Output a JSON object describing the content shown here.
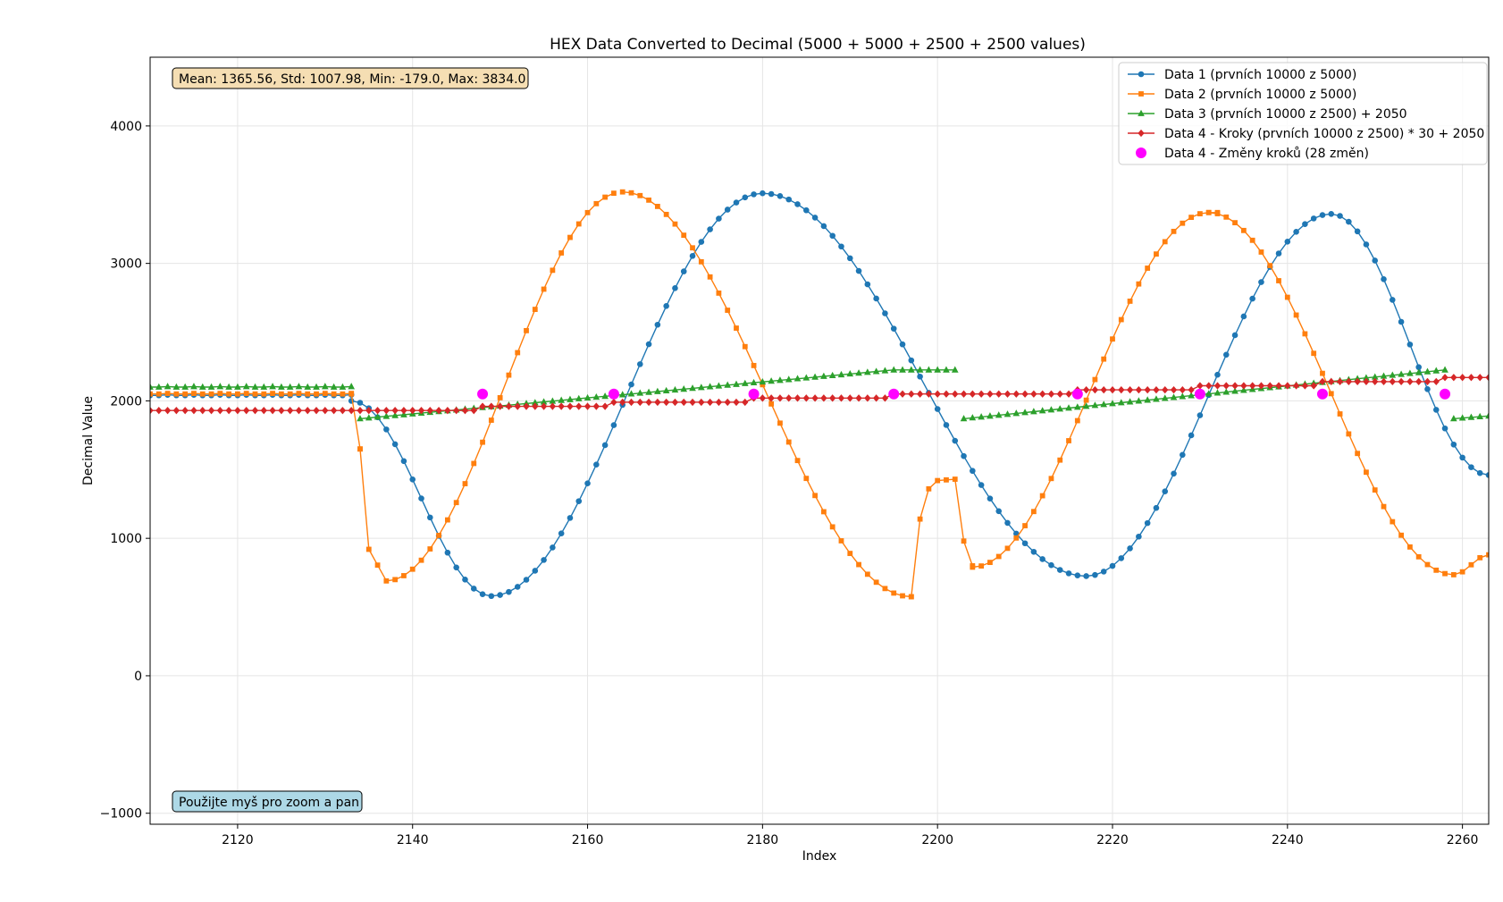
{
  "chart_data": {
    "type": "line",
    "title": "HEX Data Converted to Decimal (5000 + 5000 + 2500 + 2500 values)",
    "xlabel": "Index",
    "ylabel": "Decimal Value",
    "xlim": [
      2110,
      2263
    ],
    "ylim": [
      -1080,
      4500
    ],
    "xticks": [
      2120,
      2140,
      2160,
      2180,
      2200,
      2220,
      2240,
      2260
    ],
    "yticks": [
      -1000,
      0,
      1000,
      2000,
      3000,
      4000
    ],
    "grid": true,
    "legend_position": "top-right",
    "stats_box": "Mean: 1365.56, Std: 1007.98, Min: -179.0, Max: 3834.0",
    "hint_box": "Použijte myš pro zoom a pan",
    "x_start": 2110,
    "x_end": 2263,
    "series": [
      {
        "name": "Data 1 (prvních 10000 z 5000)",
        "color": "#1f77b4",
        "marker": "circle",
        "segments": [
          {
            "x0": 2110,
            "x1": 2133,
            "shape": "flat",
            "value": 2040
          },
          {
            "x0": 2133,
            "x1": 2263,
            "shape": "cosine",
            "period": 65,
            "pairs": [
              [
                2133,
                2000
              ],
              [
                2149,
                580
              ],
              [
                2180,
                3510
              ],
              [
                2217,
                725
              ],
              [
                2245,
                3360
              ],
              [
                2263,
                1460
              ]
            ]
          }
        ]
      },
      {
        "name": "Data 2 (prvních 10000 z 5000)",
        "color": "#ff7f0e",
        "marker": "square",
        "segments": [
          {
            "x0": 2110,
            "x1": 2133,
            "shape": "flat",
            "value": 2050
          },
          {
            "x0": 2133,
            "x1": 2134,
            "shape": "linear",
            "pairs": [
              [
                2133,
                2050
              ],
              [
                2134,
                1650
              ]
            ]
          },
          {
            "x0": 2134,
            "x1": 2163,
            "shape": "cosine",
            "pairs": [
              [
                2134,
                1650
              ],
              [
                2135,
                920
              ],
              [
                2137,
                690
              ],
              [
                2164,
                3520
              ]
            ]
          },
          {
            "x0": 2164,
            "x1": 2197,
            "shape": "cosine",
            "pairs": [
              [
                2164,
                3520
              ],
              [
                2197,
                575
              ]
            ]
          },
          {
            "x0": 2197,
            "x1": 2204,
            "shape": "linear",
            "pairs": [
              [
                2197,
                575
              ],
              [
                2198,
                1140
              ],
              [
                2199,
                1360
              ],
              [
                2200,
                1420
              ],
              [
                2202,
                1430
              ],
              [
                2203,
                980
              ],
              [
                2204,
                800
              ]
            ]
          },
          {
            "x0": 2204,
            "x1": 2232,
            "shape": "cosine",
            "pairs": [
              [
                2204,
                790
              ],
              [
                2231,
                3370
              ]
            ]
          },
          {
            "x0": 2231,
            "x1": 2263,
            "shape": "cosine",
            "pairs": [
              [
                2231,
                3370
              ],
              [
                2259,
                735
              ],
              [
                2263,
                880
              ]
            ]
          }
        ]
      },
      {
        "name": "Data 3 (prvních 10000 z 2500) + 2050",
        "color": "#2ca02c",
        "marker": "triangle",
        "segments": [
          {
            "x0": 2110,
            "x1": 2133,
            "shape": "flat",
            "value": 2100
          },
          {
            "x0": 2134,
            "x1": 2202,
            "shape": "linear",
            "pairs": [
              [
                2134,
                1870
              ],
              [
                2195,
                2225
              ],
              [
                2202,
                2225
              ]
            ]
          },
          {
            "x0": 2203,
            "x1": 2258,
            "shape": "linear",
            "pairs": [
              [
                2203,
                1870
              ],
              [
                2258,
                2225
              ]
            ]
          },
          {
            "x0": 2259,
            "x1": 2263,
            "shape": "linear",
            "pairs": [
              [
                2259,
                1870
              ],
              [
                2263,
                1890
              ]
            ]
          }
        ]
      },
      {
        "name": "Data 4 - Kroky (prvních 10000 z 2500) * 30 + 2050",
        "color": "#d62728",
        "marker": "diamond",
        "segments": [
          {
            "x0": 2110,
            "x1": 2263,
            "shape": "steps",
            "pairs": [
              [
                2110,
                1930
              ],
              [
                2148,
                1960
              ],
              [
                2163,
                1990
              ],
              [
                2179,
                2020
              ],
              [
                2195,
                2050
              ],
              [
                2216,
                2080
              ],
              [
                2230,
                2110
              ],
              [
                2244,
                2140
              ],
              [
                2258,
                2170
              ]
            ]
          }
        ]
      },
      {
        "name": "Data 4 - Změny kroků (28 změn)",
        "color": "#ff00ff",
        "marker": "big-circle",
        "points": [
          [
            2148,
            2050
          ],
          [
            2163,
            2050
          ],
          [
            2179,
            2050
          ],
          [
            2195,
            2050
          ],
          [
            2216,
            2050
          ],
          [
            2230,
            2050
          ],
          [
            2244,
            2050
          ],
          [
            2258,
            2050
          ]
        ]
      }
    ]
  }
}
